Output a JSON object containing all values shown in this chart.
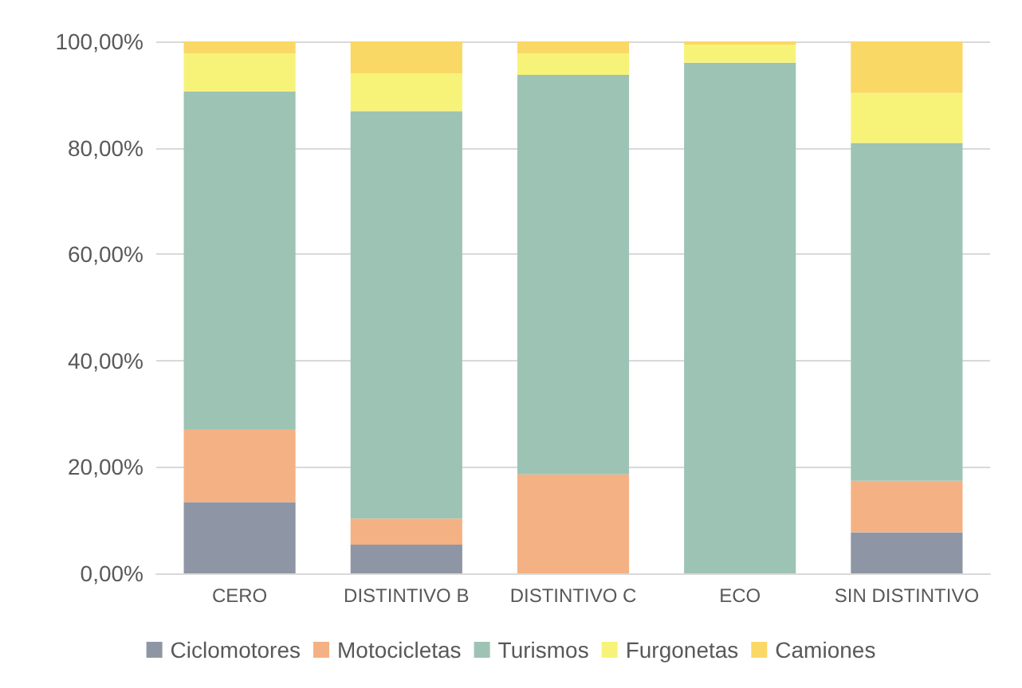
{
  "chart_data": {
    "type": "bar",
    "stacked": true,
    "categories": [
      "CERO",
      "DISTINTIVO B",
      "DISTINTIVO C",
      "ECO",
      "SIN DISTINTIVO"
    ],
    "series": [
      {
        "name": "Ciclomotores",
        "color": "#8e96a5",
        "values": [
          13.4,
          5.4,
          0,
          0,
          7.7
        ]
      },
      {
        "name": "Motocicletas",
        "color": "#f4b183",
        "values": [
          13.7,
          4.9,
          18.6,
          0,
          9.7
        ]
      },
      {
        "name": "Turismos",
        "color": "#9dc3b5",
        "values": [
          63.5,
          76.6,
          75.1,
          96,
          63.5
        ]
      },
      {
        "name": "Furgonetas",
        "color": "#f7f379",
        "values": [
          7.1,
          7.1,
          4,
          3.4,
          9.4
        ]
      },
      {
        "name": "Camiones",
        "color": "#fad865",
        "values": [
          2.3,
          6,
          2.3,
          0.6,
          9.7
        ]
      }
    ],
    "ylim": [
      0,
      100
    ],
    "yticks": [
      {
        "value": 0,
        "label": "0,00%"
      },
      {
        "value": 20,
        "label": "20,00%"
      },
      {
        "value": 40,
        "label": "40,00%"
      },
      {
        "value": 60,
        "label": "60,00%"
      },
      {
        "value": 80,
        "label": "80,00%"
      },
      {
        "value": 100,
        "label": "100,00%"
      }
    ],
    "grid": "y",
    "legend": "bottom"
  }
}
